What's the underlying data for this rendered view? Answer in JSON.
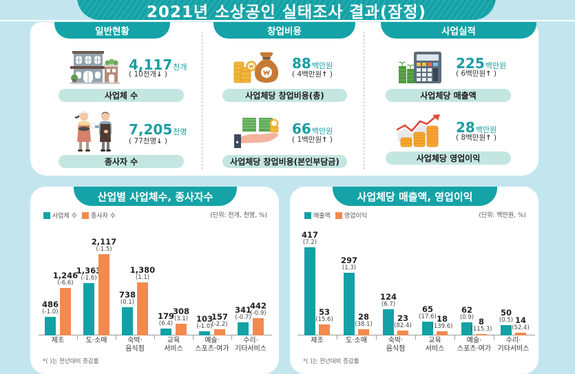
{
  "page_title": "2021년 소상공인 실태조사 결과(잠정)",
  "summary": {
    "sections": [
      {
        "header": "일반현황",
        "items": [
          {
            "icon": "store-building-icon",
            "value": "4,117",
            "unit": "천개",
            "change": "10천개",
            "arrow": "↓",
            "label": "사업체 수"
          },
          {
            "icon": "workers-icon",
            "value": "7,205",
            "unit": "천명",
            "change": "77천명",
            "arrow": "↓",
            "label": "종사자 수"
          }
        ]
      },
      {
        "header": "창업비용",
        "items": [
          {
            "icon": "money-bag-icon",
            "value": "88",
            "unit": "백만원",
            "change": "4백만원",
            "arrow": "↑",
            "label": "사업체당 창업비용(총)"
          },
          {
            "icon": "hand-cash-icon",
            "value": "66",
            "unit": "백만원",
            "change": "1백만원",
            "arrow": "↑",
            "label": "사업체당 창업비용(본인부담금)"
          }
        ]
      },
      {
        "header": "사업실적",
        "items": [
          {
            "icon": "calculator-icon",
            "value": "225",
            "unit": "백만원",
            "change": "6백만원",
            "arrow": "↑",
            "label": "사업체당 매출액"
          },
          {
            "icon": "coins-rising-icon",
            "value": "28",
            "unit": "백만원",
            "change": "8백만원",
            "arrow": "↑",
            "label": "사업체당 영업이익"
          }
        ]
      }
    ]
  },
  "chart_data": [
    {
      "type": "bar",
      "title": "산업별 사업체수, 종사자수",
      "unit_note": "(단위: 천개, 천명, %)",
      "xlabel": "",
      "ylabel": "",
      "categories": [
        "제조",
        "도·소매",
        "숙박·음식점",
        "교육서비스",
        "예술·스포츠·여가",
        "수리·기타서비스"
      ],
      "category_lines": [
        [
          "제조"
        ],
        [
          "도·소매"
        ],
        [
          "숙박·",
          "음식점"
        ],
        [
          "교육",
          "서비스"
        ],
        [
          "예술·",
          "스포츠·여가"
        ],
        [
          "수리·",
          "기타서비스"
        ]
      ],
      "series": [
        {
          "name": "사업체 수",
          "color": "#13a1a5",
          "values": [
            486,
            1363,
            738,
            179,
            103,
            341
          ],
          "labels": [
            "486",
            "1,363",
            "738",
            "179",
            "103",
            "341"
          ],
          "change_pct": [
            "(-1.0)",
            "(-1.6)",
            "(0.1)",
            "(6.4)",
            "(-1.0)",
            "(-0.7)"
          ]
        },
        {
          "name": "종사자 수",
          "color": "#f28a4f",
          "values": [
            1246,
            2117,
            1380,
            308,
            157,
            442
          ],
          "labels": [
            "1,246",
            "2,117",
            "1,380",
            "308",
            "157",
            "442"
          ],
          "change_pct": [
            "(-6.6)",
            "(-1.5)",
            "(1.1)",
            "(3.1)",
            "(-2.2)",
            "(-0.9)"
          ]
        }
      ],
      "ylim": [
        0,
        2300
      ],
      "grid": false,
      "legend": "top-left",
      "footnote": "*(  )는 전년대비 증감률"
    },
    {
      "type": "bar",
      "title": "사업체당 매출액, 영업이익",
      "unit_note": "(단위: 백만원, %)",
      "xlabel": "",
      "ylabel": "",
      "categories": [
        "제조",
        "도·소매",
        "숙박·음식점",
        "교육서비스",
        "예술·스포츠·여가",
        "수리·기타서비스"
      ],
      "category_lines": [
        [
          "제조"
        ],
        [
          "도·소매"
        ],
        [
          "숙박·",
          "음식점"
        ],
        [
          "교육",
          "서비스"
        ],
        [
          "예술·",
          "스포츠·여가"
        ],
        [
          "수리·",
          "기타서비스"
        ]
      ],
      "series": [
        {
          "name": "매출액",
          "color": "#13a1a5",
          "values": [
            417,
            297,
            124,
            65,
            62,
            50
          ],
          "labels": [
            "417",
            "297",
            "124",
            "65",
            "62",
            "50"
          ],
          "change_pct": [
            "(7.2)",
            "(1.3)",
            "(6.7)",
            "(17.6)",
            "(0.9)",
            "(0.5)"
          ]
        },
        {
          "name": "영업이익",
          "color": "#f28a4f",
          "values": [
            53,
            28,
            23,
            18,
            8,
            14
          ],
          "labels": [
            "53",
            "28",
            "23",
            "18",
            "8",
            "14"
          ],
          "change_pct": [
            "(15.6)",
            "(38.1)",
            "(82.4)",
            "(139.6)",
            "(115.3)",
            "(52.4)"
          ]
        }
      ],
      "ylim": [
        0,
        450
      ],
      "grid": false,
      "legend": "top-left",
      "footnote": "*(  )는 전년대비 증감률"
    }
  ]
}
